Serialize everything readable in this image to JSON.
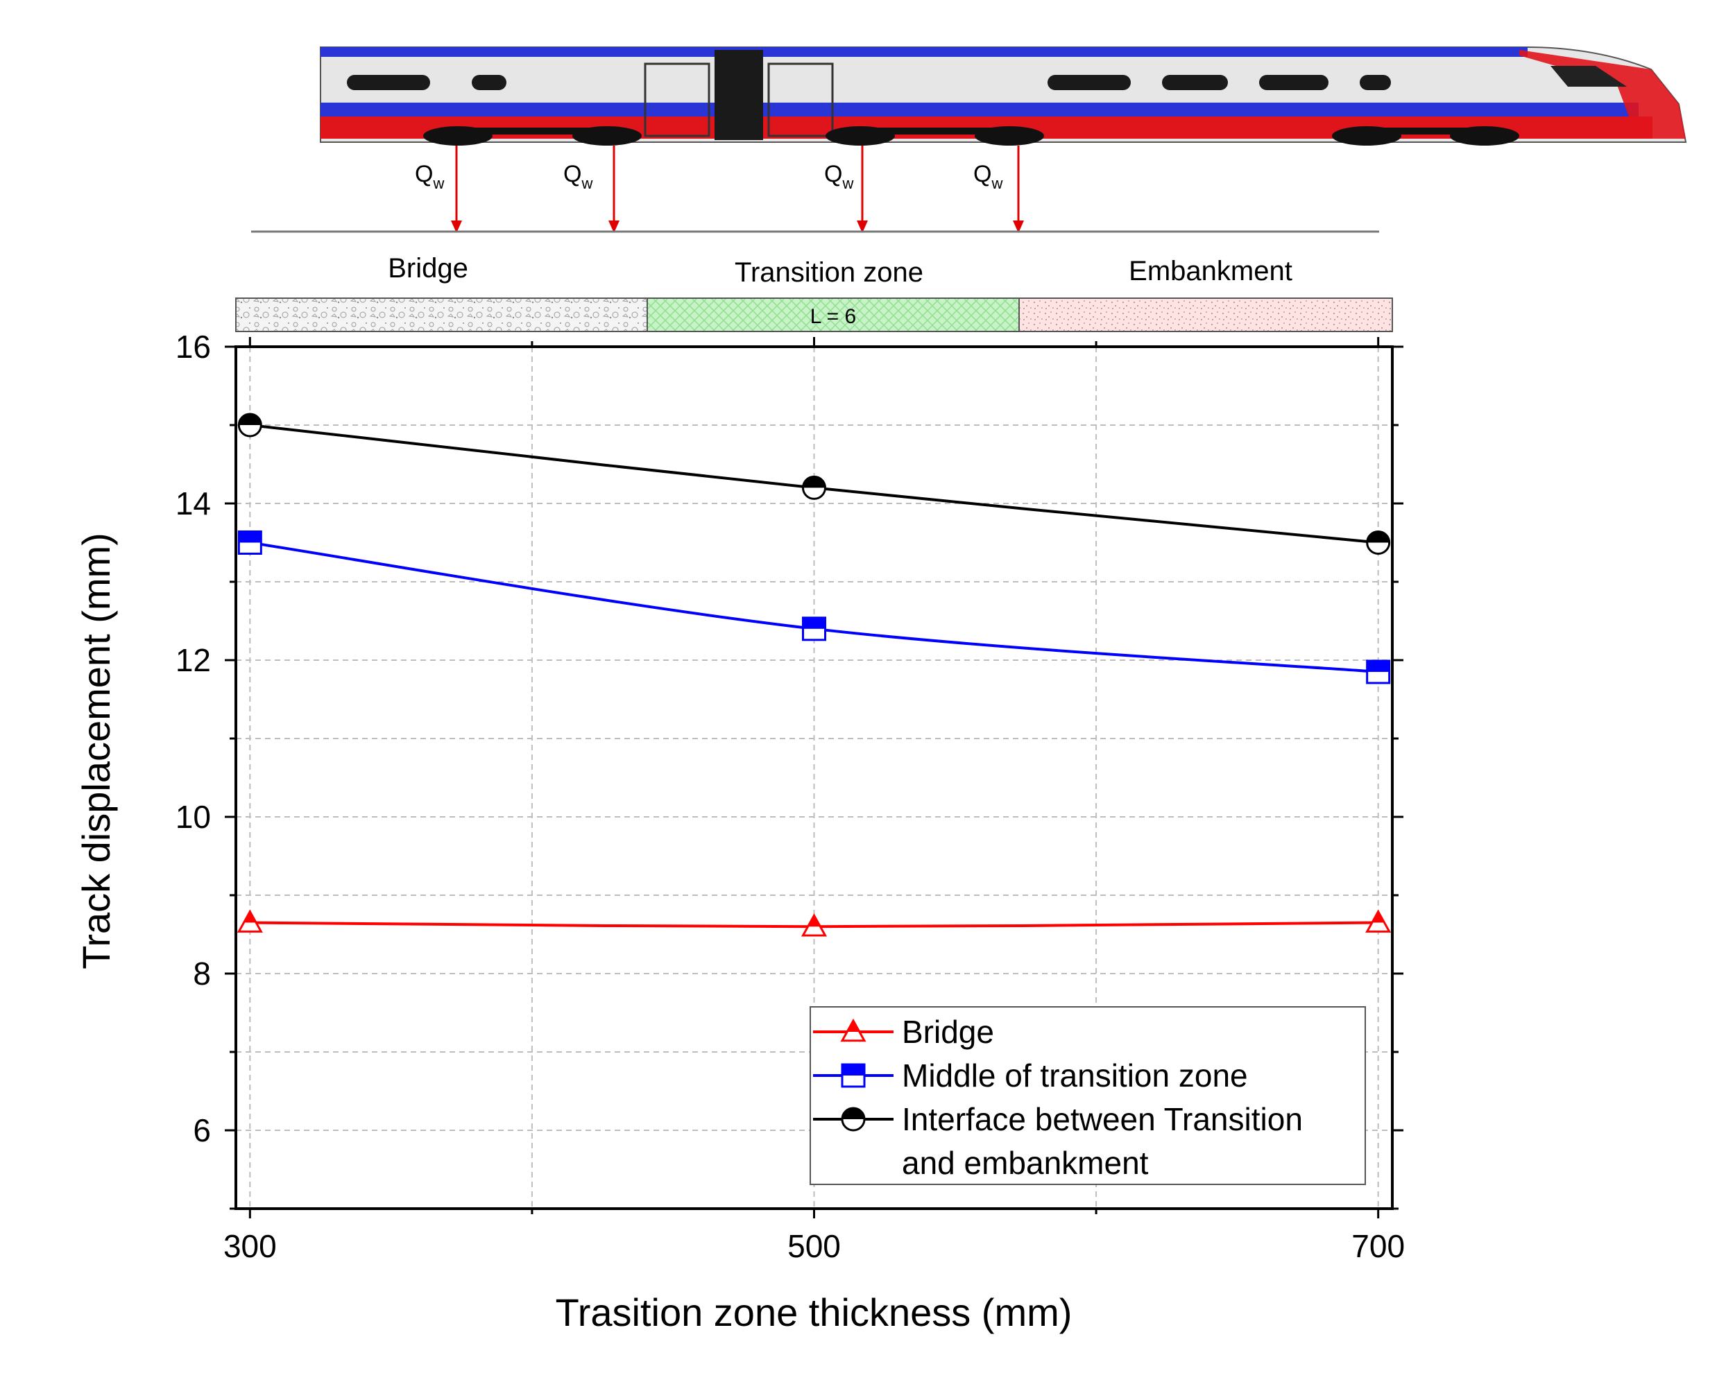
{
  "colors": {
    "bridge": "#ff0000",
    "middle": "#0000ff",
    "interface": "#000000",
    "train_red": "#e0141b",
    "train_blue": "#2a35d6",
    "bridge_fill": "#f4f4f4",
    "transition_fill": "#c8f2c8",
    "embankment_fill": "#fbe4e4"
  },
  "illustration": {
    "load_label": "Q",
    "load_subscript": "w",
    "zones": {
      "bridge": "Bridge",
      "transition": "Transition zone",
      "transition_length": "L = 6",
      "embankment": "Embankment"
    }
  },
  "chart_data": {
    "type": "line",
    "title": "",
    "xlabel": "Trasition zone thickness (mm)",
    "ylabel": "Track displacement (mm)",
    "xlim": [
      295,
      705
    ],
    "ylim": [
      5,
      16
    ],
    "x_ticks": [
      300,
      500,
      700
    ],
    "x_tick_labels": [
      "300",
      "500",
      "700"
    ],
    "x_minor_ticks": [
      400,
      600
    ],
    "y_ticks": [
      6,
      8,
      10,
      12,
      14,
      16
    ],
    "y_tick_labels": [
      "6",
      "8",
      "10",
      "12",
      "14",
      "16"
    ],
    "y_minor_ticks": [
      5,
      7,
      9,
      11,
      13,
      15
    ],
    "grid": true,
    "legend_position": "bottom-right",
    "x": [
      300,
      500,
      700
    ],
    "series": [
      {
        "name": "Bridge",
        "legend_lines": [
          "Bridge"
        ],
        "marker": "triangle",
        "color_key": "bridge",
        "values": [
          8.65,
          8.6,
          8.65
        ]
      },
      {
        "name": "Middle of transition zone",
        "legend_lines": [
          "Middle of transition zone"
        ],
        "marker": "square",
        "color_key": "middle",
        "values": [
          13.5,
          12.4,
          11.85
        ]
      },
      {
        "name": "Interface between Transition and embankment",
        "legend_lines": [
          "Interface between Transition",
          "and embankment"
        ],
        "marker": "circle",
        "color_key": "interface",
        "values": [
          15.0,
          14.2,
          13.5
        ]
      }
    ]
  }
}
